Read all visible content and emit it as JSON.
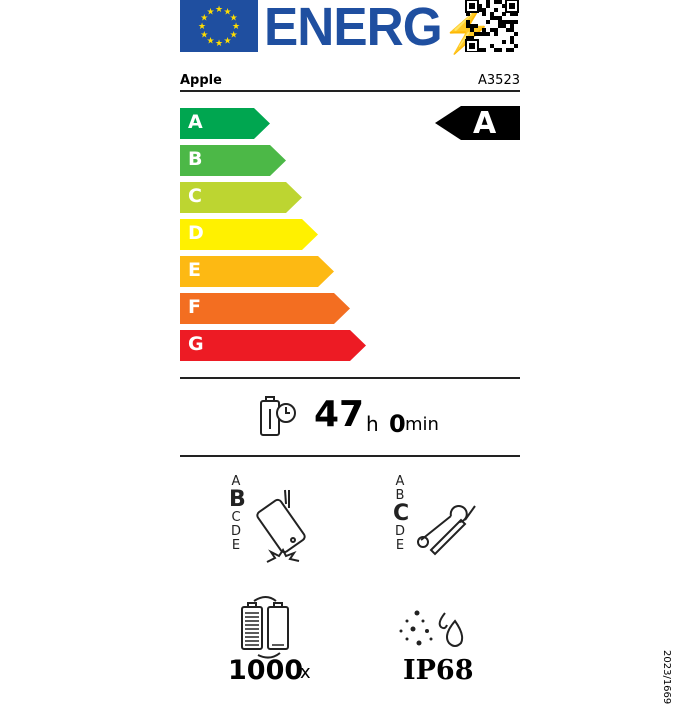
{
  "header": {
    "logo_text": "ENERG",
    "supplier": "Apple",
    "model": "A3523"
  },
  "energy_scale": {
    "classes": [
      "A",
      "B",
      "C",
      "D",
      "E",
      "F",
      "G"
    ],
    "colors": [
      "#00a650",
      "#4cb847",
      "#bdd531",
      "#fff100",
      "#fdb913",
      "#f36e21",
      "#ed1b24"
    ],
    "selected": "A"
  },
  "battery": {
    "hours": "47",
    "hours_unit": "h",
    "minutes": "0",
    "minutes_unit": "min"
  },
  "drop_resistance": {
    "scale": [
      "A",
      "B",
      "C",
      "D",
      "E"
    ],
    "selected": "B"
  },
  "repairability": {
    "scale": [
      "A",
      "B",
      "C",
      "D",
      "E"
    ],
    "selected": "C"
  },
  "battery_cycles": {
    "value": "1000",
    "unit": "x"
  },
  "ingress_protection": {
    "value": "IP68"
  },
  "regulation": "2023/1669"
}
